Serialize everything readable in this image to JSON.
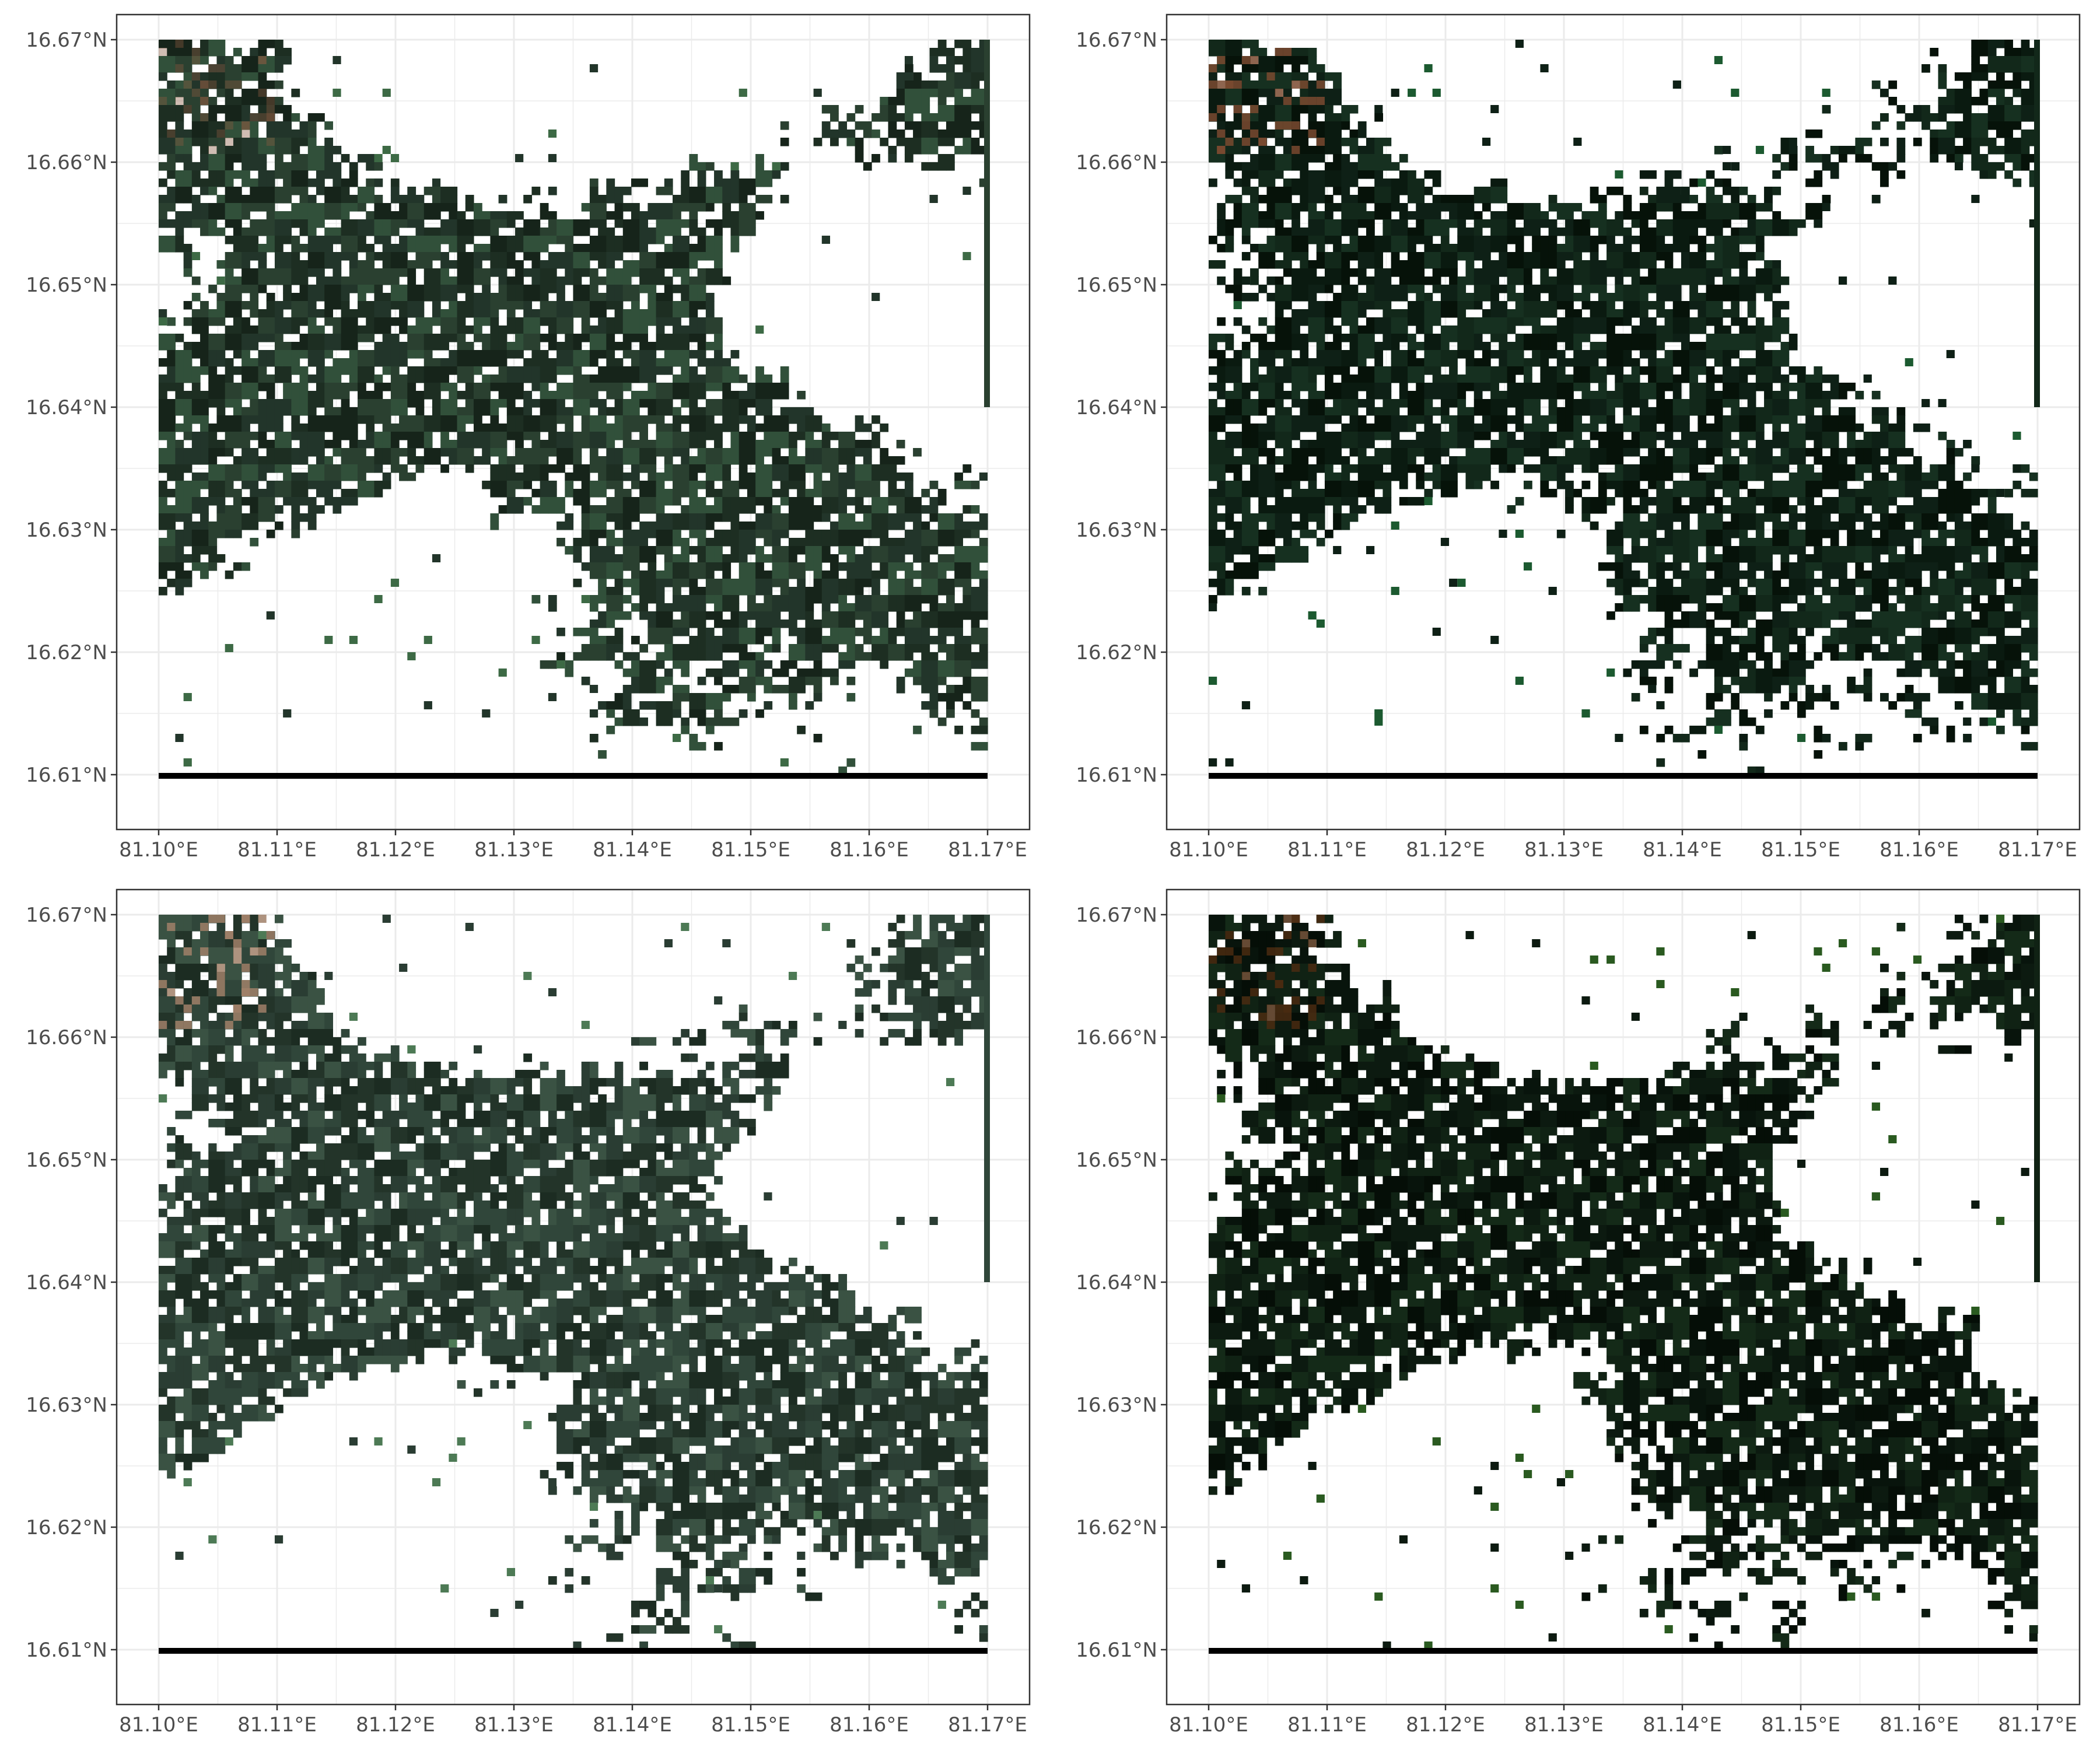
{
  "figure": {
    "panel_count": 4,
    "layout": "2x2 grid",
    "theme": "white background, light grey grid, dark grey border"
  },
  "axes": {
    "x_ticks": [
      "81.10°E",
      "81.11°E",
      "81.12°E",
      "81.13°E",
      "81.14°E",
      "81.15°E",
      "81.16°E",
      "81.17°E"
    ],
    "y_ticks": [
      "16.67°N",
      "16.66°N",
      "16.65°N",
      "16.64°N",
      "16.63°N",
      "16.62°N",
      "16.61°N"
    ],
    "x_range": [
      81.1,
      81.17
    ],
    "y_range": [
      16.61,
      16.67
    ]
  },
  "panels": [
    {
      "id": "top-left",
      "palette": [
        "#22352a",
        "#1d2e22",
        "#2a4030",
        "#16241a",
        "#31503a"
      ],
      "accent": "#3d6a45",
      "tint": "#8a5a40"
    },
    {
      "id": "top-right",
      "palette": [
        "#0e2016",
        "#0a1a10",
        "#12281a",
        "#061209",
        "#163020"
      ],
      "accent": "#1c5a30",
      "tint": "#7a4a30"
    },
    {
      "id": "bottom-left",
      "palette": [
        "#2a3d33",
        "#233429",
        "#30463a",
        "#1c2c22",
        "#3a5243"
      ],
      "accent": "#4d7a55",
      "tint": "#a08068"
    },
    {
      "id": "bottom-right",
      "palette": [
        "#0c1a10",
        "#08140c",
        "#102214",
        "#050e07",
        "#142a18"
      ],
      "accent": "#2a5a20",
      "tint": "#4a2a10"
    }
  ],
  "colors": {
    "grid": "#ebebeb",
    "border": "#333333",
    "tick": "#333333",
    "label": "#4d4d4d",
    "baseline": "#000000"
  }
}
